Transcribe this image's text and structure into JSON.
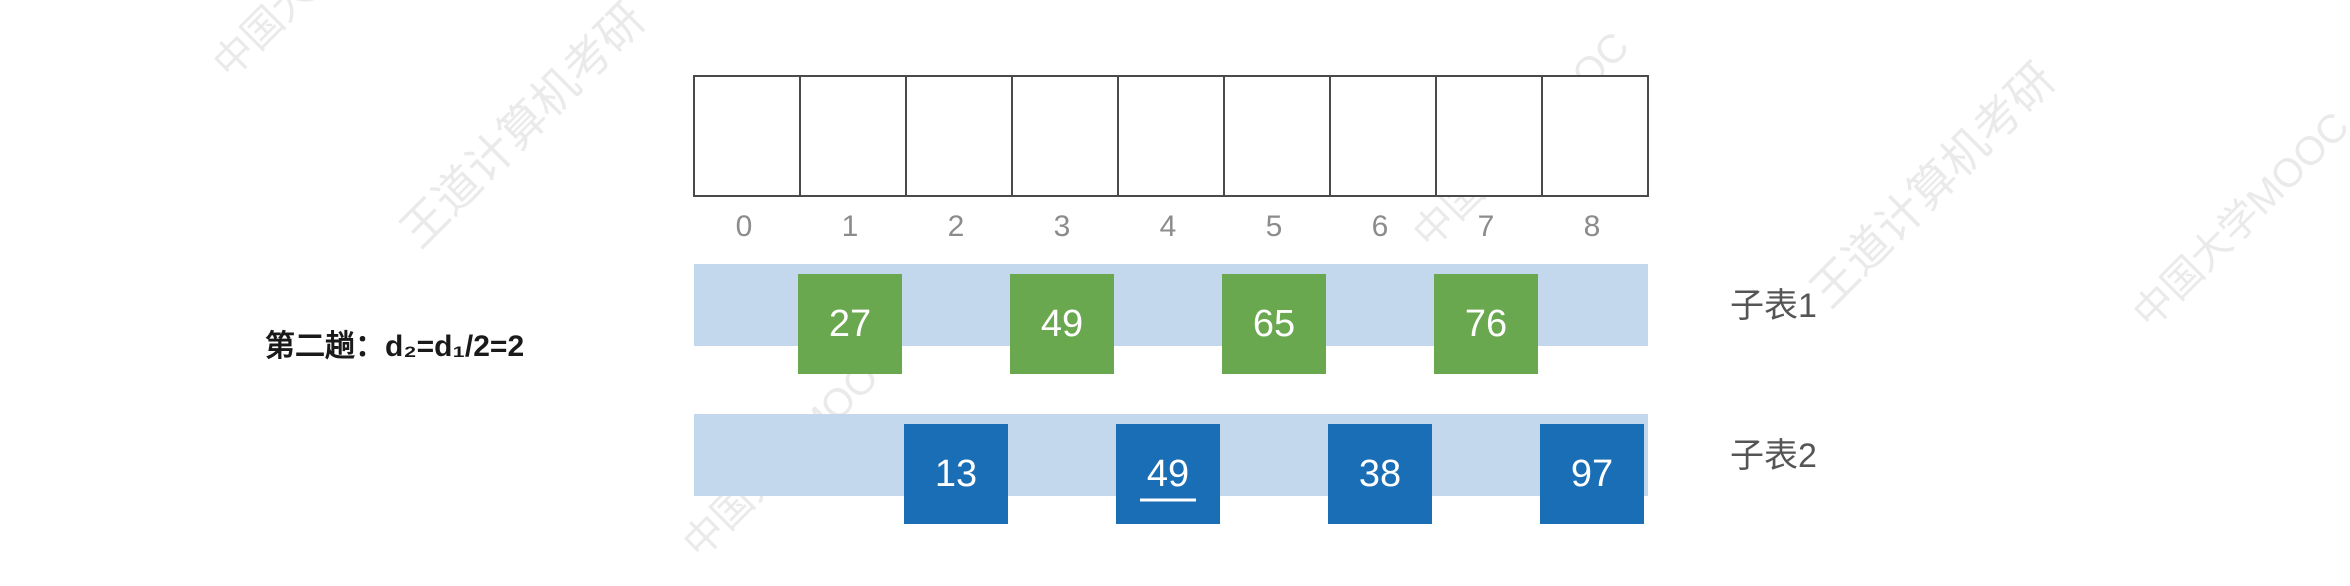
{
  "pass_label": "第二趟：d₂=d₁/2=2",
  "array": {
    "indices": [
      "0",
      "1",
      "2",
      "3",
      "4",
      "5",
      "6",
      "7",
      "8"
    ]
  },
  "sublists": [
    {
      "label": "子表1",
      "color": "#6aa84f",
      "items": [
        {
          "index": 1,
          "value": "27",
          "underline": false
        },
        {
          "index": 3,
          "value": "49",
          "underline": false
        },
        {
          "index": 5,
          "value": "65",
          "underline": false
        },
        {
          "index": 7,
          "value": "76",
          "underline": false
        }
      ]
    },
    {
      "label": "子表2",
      "color": "#1a6eb5",
      "items": [
        {
          "index": 2,
          "value": "13",
          "underline": false
        },
        {
          "index": 4,
          "value": "49",
          "underline": true
        },
        {
          "index": 6,
          "value": "38",
          "underline": false
        },
        {
          "index": 8,
          "value": "97",
          "underline": false
        }
      ]
    }
  ],
  "colors": {
    "band": "#c3d8ec",
    "cell_border": "#4a4a4a",
    "index_text": "#8c8c8c"
  }
}
